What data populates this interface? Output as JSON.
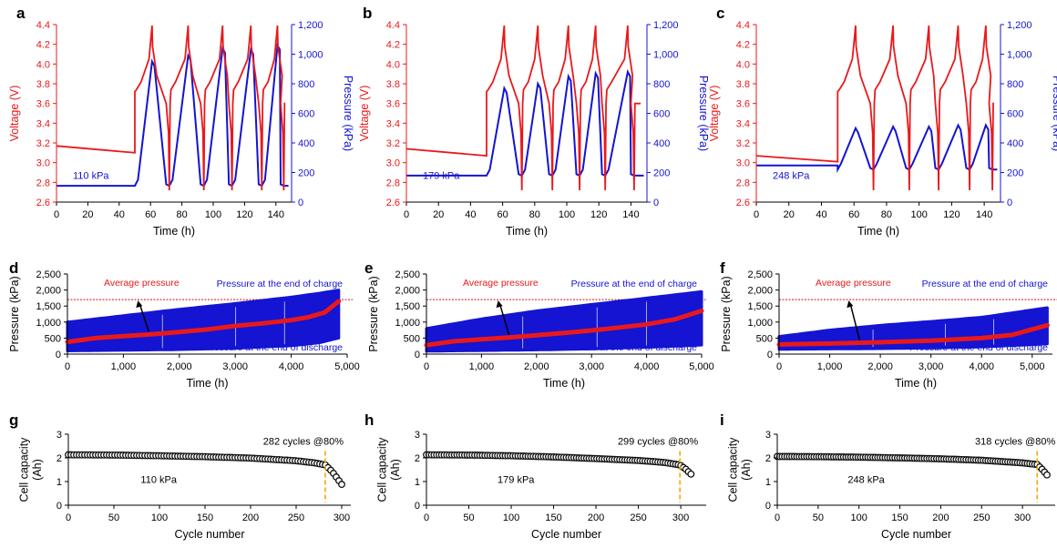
{
  "colors": {
    "voltage": "#e8191b",
    "pressure": "#1414d2",
    "capacity_marker": "#111111",
    "threshold_line": "#cc1111",
    "cutoff_line": "#f5a800",
    "annotation_text": "#e8191b",
    "annotation_blue": "#1414d2"
  },
  "chart_data": [
    {
      "panel": "a",
      "type": "line",
      "xlabel": "Time (h)",
      "ylabel": "Voltage (V)",
      "y2label": "Pressure (kPa)",
      "xlim": [
        0,
        150
      ],
      "ylim": [
        2.6,
        4.4
      ],
      "y2lim": [
        0,
        1200
      ],
      "xticks": [
        "0",
        "20",
        "40",
        "60",
        "80",
        "100",
        "120",
        "140"
      ],
      "yticks": [
        "2.6",
        "2.8",
        "3.0",
        "3.2",
        "3.4",
        "3.6",
        "3.8",
        "4.0",
        "4.2",
        "4.4"
      ],
      "y2ticks": [
        "0",
        "200",
        "400",
        "600",
        "800",
        "1,000",
        "1,200"
      ],
      "annotation": "110 kPa",
      "rest": {
        "t_end": 50,
        "v_start": 3.17,
        "v_end": 3.1,
        "p_rest": 110
      },
      "cycles": [
        {
          "t_start": 50,
          "t_peak": 61,
          "t_end": 72,
          "v_top": 4.39,
          "p_peak": 950
        },
        {
          "t_start": 72,
          "t_peak": 84,
          "t_end": 94,
          "v_top": 4.39,
          "p_peak": 990
        },
        {
          "t_start": 94,
          "t_peak": 106,
          "t_end": 112,
          "v_top": 4.39,
          "p_peak": 1040
        },
        {
          "t_start": 112,
          "t_peak": 124,
          "t_end": 131,
          "v_top": 4.39,
          "p_peak": 1030
        },
        {
          "t_start": 131,
          "t_peak": 141,
          "t_end": 145,
          "v_top": 4.39,
          "p_peak": 1060
        }
      ],
      "p_base": 110
    },
    {
      "panel": "b",
      "type": "line",
      "xlabel": "Time (h)",
      "ylabel": "Voltage (V)",
      "y2label": "Pressure (kPa)",
      "xlim": [
        0,
        150
      ],
      "ylim": [
        2.6,
        4.4
      ],
      "y2lim": [
        0,
        1200
      ],
      "xticks": [
        "0",
        "20",
        "40",
        "60",
        "80",
        "100",
        "120",
        "140"
      ],
      "yticks": [
        "2.6",
        "2.8",
        "3.0",
        "3.2",
        "3.4",
        "3.6",
        "3.8",
        "4.0",
        "4.2",
        "4.4"
      ],
      "y2ticks": [
        "0",
        "200",
        "400",
        "600",
        "800",
        "1,000",
        "1,200"
      ],
      "annotation": "179 kPa",
      "rest": {
        "t_end": 50,
        "v_start": 3.14,
        "v_end": 3.07,
        "p_rest": 179
      },
      "cycles": [
        {
          "t_start": 50,
          "t_peak": 61,
          "t_end": 72,
          "v_top": 4.39,
          "p_peak": 770
        },
        {
          "t_start": 72,
          "t_peak": 82,
          "t_end": 91,
          "v_top": 4.39,
          "p_peak": 800
        },
        {
          "t_start": 91,
          "t_peak": 101,
          "t_end": 108,
          "v_top": 4.39,
          "p_peak": 850
        },
        {
          "t_start": 108,
          "t_peak": 118,
          "t_end": 124,
          "v_top": 4.39,
          "p_peak": 870
        },
        {
          "t_start": 124,
          "t_peak": 138,
          "t_end": 142,
          "v_top": 4.39,
          "p_peak": 880
        }
      ],
      "p_base": 179
    },
    {
      "panel": "c",
      "type": "line",
      "xlabel": "Time (h)",
      "ylabel": "Voltage (V)",
      "y2label": "Pressure (kPa)",
      "xlim": [
        0,
        150
      ],
      "ylim": [
        2.6,
        4.4
      ],
      "y2lim": [
        0,
        1200
      ],
      "xticks": [
        "0",
        "20",
        "40",
        "60",
        "80",
        "100",
        "120",
        "140"
      ],
      "yticks": [
        "2.6",
        "2.8",
        "3.0",
        "3.2",
        "3.4",
        "3.6",
        "3.8",
        "4.0",
        "4.2",
        "4.4"
      ],
      "y2ticks": [
        "0",
        "200",
        "400",
        "600",
        "800",
        "1,000",
        "1,200"
      ],
      "annotation": "248 kPa",
      "rest": {
        "t_end": 50,
        "v_start": 3.07,
        "v_end": 3.01,
        "p_rest": 248
      },
      "cycles": [
        {
          "t_start": 50,
          "t_peak": 61,
          "t_end": 72,
          "v_top": 4.39,
          "p_peak": 500
        },
        {
          "t_start": 72,
          "t_peak": 84,
          "t_end": 94,
          "v_top": 4.39,
          "p_peak": 510
        },
        {
          "t_start": 94,
          "t_peak": 106,
          "t_end": 112,
          "v_top": 4.39,
          "p_peak": 510
        },
        {
          "t_start": 112,
          "t_peak": 124,
          "t_end": 131,
          "v_top": 4.39,
          "p_peak": 520
        },
        {
          "t_start": 131,
          "t_peak": 141,
          "t_end": 145,
          "v_top": 4.39,
          "p_peak": 520
        }
      ],
      "p_base": 220
    },
    {
      "panel": "d",
      "type": "area",
      "xlabel": "Time (h)",
      "ylabel": "Pressure (kPa)",
      "xlim": [
        0,
        5000
      ],
      "ylim": [
        0,
        2500
      ],
      "xticks": [
        "0",
        "1,000",
        "2,000",
        "3,000",
        "4,000",
        "5,000"
      ],
      "yticks": [
        "0",
        "500",
        "1,000",
        "1,500",
        "2,000",
        "2,500"
      ],
      "threshold": 1700,
      "upper_label": "Pressure at the end of charge",
      "lower_label": "Pressure at the end of discharge",
      "avg_label": "Average pressure",
      "upper": {
        "x": [
          0,
          1000,
          2000,
          3000,
          4000,
          4500,
          4850
        ],
        "y": [
          1000,
          1200,
          1400,
          1580,
          1780,
          1900,
          2000
        ]
      },
      "lower": {
        "x": [
          0,
          1000,
          2000,
          3000,
          4000,
          4500,
          4850
        ],
        "y": [
          100,
          120,
          140,
          180,
          260,
          350,
          500
        ]
      },
      "average": {
        "x": [
          0,
          500,
          1000,
          1500,
          2000,
          2500,
          3000,
          3500,
          4000,
          4300,
          4600,
          4850
        ],
        "y": [
          380,
          500,
          560,
          620,
          690,
          770,
          880,
          960,
          1060,
          1150,
          1300,
          1650
        ]
      }
    },
    {
      "panel": "e",
      "type": "area",
      "xlabel": "Time (h)",
      "ylabel": "Pressure (kPa)",
      "xlim": [
        0,
        5000
      ],
      "ylim": [
        0,
        2500
      ],
      "xticks": [
        "0",
        "1,000",
        "2,000",
        "3,000",
        "4,000",
        "5,000"
      ],
      "yticks": [
        "0",
        "500",
        "1,000",
        "1,500",
        "2,000",
        "2,500"
      ],
      "threshold": 1700,
      "upper_label": "Pressure at the end of charge",
      "lower_label": "Pressure at the end of discharge",
      "avg_label": "Average pressure",
      "upper": {
        "x": [
          0,
          1000,
          2000,
          3000,
          4000,
          5000
        ],
        "y": [
          800,
          1100,
          1350,
          1550,
          1750,
          1950
        ]
      },
      "lower": {
        "x": [
          0,
          1000,
          2000,
          3000,
          4000,
          5000
        ],
        "y": [
          90,
          110,
          130,
          160,
          210,
          280
        ]
      },
      "average": {
        "x": [
          0,
          500,
          1000,
          1500,
          2000,
          2500,
          3000,
          3500,
          4000,
          4500,
          5000
        ],
        "y": [
          280,
          400,
          460,
          520,
          590,
          660,
          740,
          830,
          930,
          1080,
          1350
        ]
      }
    },
    {
      "panel": "f",
      "type": "area",
      "xlabel": "Time (h)",
      "ylabel": "Pressure (kPa)",
      "xlim": [
        0,
        5400
      ],
      "ylim": [
        0,
        2500
      ],
      "xticks": [
        "0",
        "1,000",
        "2,000",
        "3,000",
        "4,000",
        "5,000"
      ],
      "yticks": [
        "0",
        "500",
        "1,000",
        "1,500",
        "2,000",
        "2,500"
      ],
      "threshold": 1700,
      "upper_label": "Pressure at the end of charge",
      "lower_label": "Pressure at the end of discharge",
      "avg_label": "Average pressure",
      "upper": {
        "x": [
          0,
          1000,
          2000,
          3000,
          4000,
          5300
        ],
        "y": [
          550,
          750,
          900,
          1020,
          1150,
          1450
        ]
      },
      "lower": {
        "x": [
          0,
          1000,
          2000,
          3000,
          4000,
          5300
        ],
        "y": [
          150,
          160,
          170,
          190,
          220,
          320
        ]
      },
      "average": {
        "x": [
          0,
          1000,
          2000,
          3000,
          4000,
          4600,
          5300
        ],
        "y": [
          300,
          330,
          370,
          420,
          500,
          600,
          900
        ]
      }
    },
    {
      "panel": "g",
      "type": "scatter",
      "xlabel": "Cycle number",
      "ylabel": "Cell capacity (Ah)",
      "xlim": [
        0,
        310
      ],
      "ylim": [
        0,
        3
      ],
      "xticks": [
        "0",
        "50",
        "100",
        "150",
        "200",
        "250",
        "300"
      ],
      "yticks": [
        "0",
        "1",
        "2",
        "3"
      ],
      "annotation": "282 cycles @80%",
      "pressure_label": "110 kPa",
      "cutoff_cycle": 282,
      "last_cycle": 300,
      "curve": {
        "x": [
          0,
          50,
          100,
          150,
          200,
          250,
          270,
          282,
          290,
          300
        ],
        "y": [
          2.13,
          2.12,
          2.09,
          2.05,
          1.99,
          1.88,
          1.79,
          1.7,
          1.4,
          0.88
        ]
      }
    },
    {
      "panel": "h",
      "type": "scatter",
      "xlabel": "Cycle number",
      "ylabel": "Cell capacity (Ah)",
      "xlim": [
        0,
        330
      ],
      "ylim": [
        0,
        3
      ],
      "xticks": [
        "0",
        "50",
        "100",
        "150",
        "200",
        "250",
        "300"
      ],
      "yticks": [
        "0",
        "1",
        "2",
        "3"
      ],
      "annotation": "299 cycles @80%",
      "pressure_label": "179 kPa",
      "cutoff_cycle": 299,
      "last_cycle": 313,
      "curve": {
        "x": [
          0,
          50,
          100,
          150,
          200,
          250,
          280,
          299,
          306,
          313
        ],
        "y": [
          2.13,
          2.12,
          2.09,
          2.04,
          1.97,
          1.89,
          1.81,
          1.7,
          1.52,
          1.28
        ]
      }
    },
    {
      "panel": "i",
      "type": "scatter",
      "xlabel": "Cycle number",
      "ylabel": "Cell capacity (Ah)",
      "xlim": [
        0,
        340
      ],
      "ylim": [
        0,
        3
      ],
      "xticks": [
        "0",
        "50",
        "100",
        "150",
        "200",
        "250",
        "300"
      ],
      "yticks": [
        "0",
        "1",
        "2",
        "3"
      ],
      "annotation": "318 cycles @80%",
      "pressure_label": "248 kPa",
      "cutoff_cycle": 318,
      "last_cycle": 330,
      "curve": {
        "x": [
          0,
          50,
          100,
          150,
          200,
          250,
          300,
          318,
          324,
          330
        ],
        "y": [
          2.06,
          2.05,
          2.03,
          2.0,
          1.96,
          1.9,
          1.79,
          1.72,
          1.52,
          1.28
        ]
      }
    }
  ]
}
